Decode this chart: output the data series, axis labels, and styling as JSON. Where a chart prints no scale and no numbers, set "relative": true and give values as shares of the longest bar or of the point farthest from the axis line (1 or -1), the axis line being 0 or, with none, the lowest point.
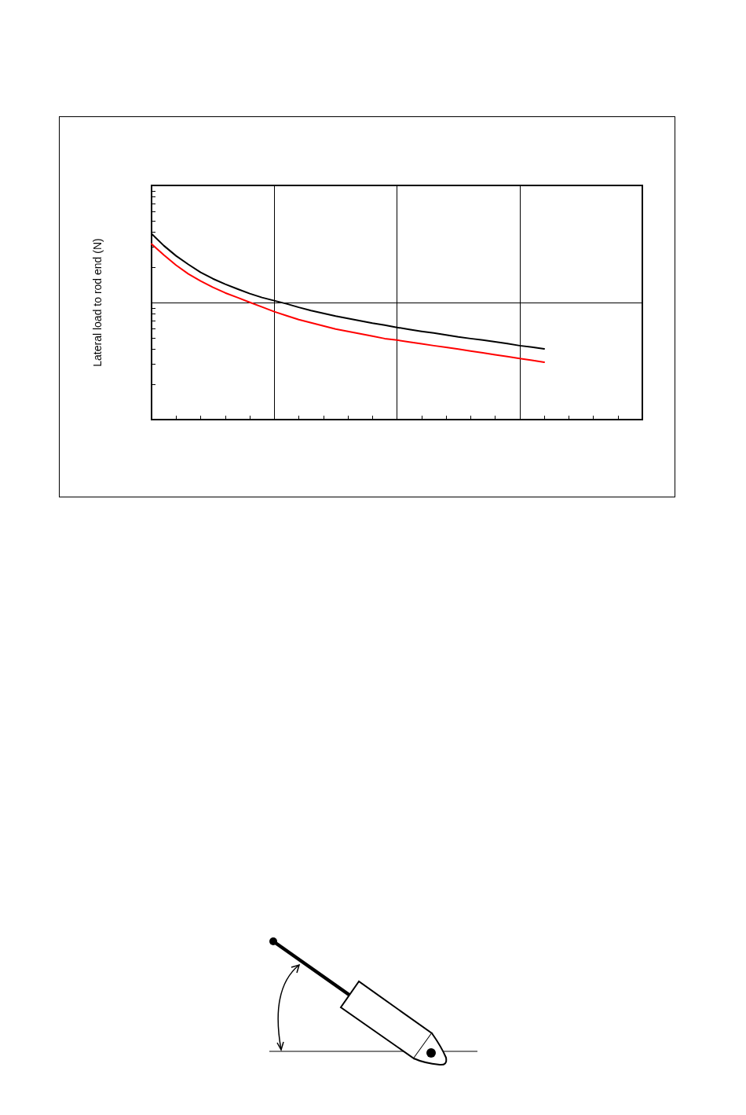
{
  "chart_data": {
    "type": "line",
    "ylabel": "Lateral load to rod end (N)",
    "relative": true,
    "grid": true,
    "categories": [
      null,
      null,
      null,
      null,
      null,
      null,
      null,
      null,
      null,
      null,
      null,
      null,
      null,
      null,
      null,
      null,
      null,
      null,
      null,
      null,
      null,
      null,
      null,
      null,
      null,
      null,
      null,
      null,
      null,
      null,
      null,
      null,
      null,
      null,
      null,
      null,
      null,
      null,
      null,
      null,
      null
    ],
    "series": [
      {
        "color": "#000000",
        "values": [
          1,
          0.936,
          0.881,
          0.835,
          0.792,
          0.758,
          0.729,
          0.703,
          0.678,
          0.657,
          0.64,
          0.623,
          0.604,
          0.587,
          0.572,
          0.557,
          0.544,
          0.532,
          0.519,
          0.508,
          0.496,
          0.485,
          0.475,
          0.466,
          0.456,
          0.445,
          0.436,
          0.428,
          0.419,
          0.409,
          0.398,
          0.39,
          0.381,
          null,
          null,
          null,
          null,
          null,
          null,
          null,
          null
        ]
      },
      {
        "color": "#ff0000",
        "values": [
          0.945,
          0.886,
          0.831,
          0.784,
          0.746,
          0.712,
          0.682,
          0.657,
          0.631,
          0.606,
          0.581,
          0.559,
          0.538,
          0.521,
          0.504,
          0.487,
          0.475,
          0.462,
          0.449,
          0.436,
          0.428,
          0.418,
          0.408,
          0.398,
          0.389,
          0.379,
          0.369,
          0.359,
          0.349,
          0.339,
          0.329,
          0.319,
          0.309,
          null,
          null,
          null,
          null,
          null,
          null,
          null,
          null
        ]
      }
    ]
  }
}
